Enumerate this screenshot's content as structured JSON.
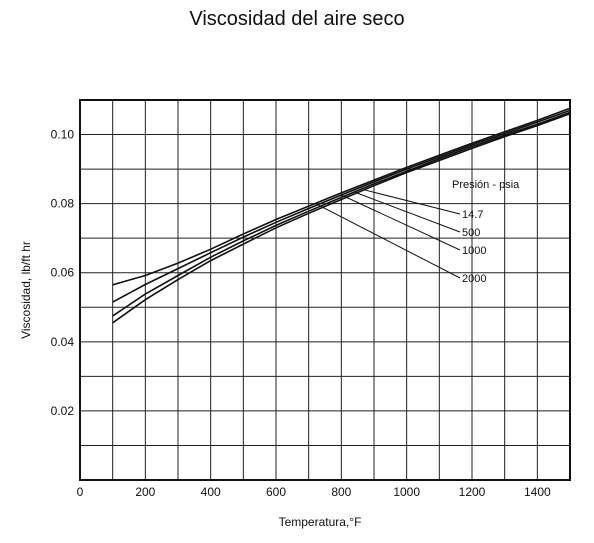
{
  "title": "Viscosidad del aire seco",
  "chart_data": {
    "type": "line",
    "title": "Viscosidad del aire seco",
    "xlabel": "Temperatura,°F",
    "ylabel": "Viscosidad, lb/ft hr",
    "xlim": [
      0,
      1500
    ],
    "ylim": [
      0.0,
      0.11
    ],
    "x_ticks": [
      0,
      200,
      400,
      600,
      800,
      1000,
      1200,
      1400
    ],
    "y_ticks": [
      0.02,
      0.04,
      0.06,
      0.08,
      0.1
    ],
    "grid": true,
    "legend_title": "Presión - psia",
    "series": [
      {
        "name": "14.7",
        "x": [
          100,
          200,
          300,
          400,
          500,
          600,
          700,
          800,
          900,
          1000,
          1100,
          1200,
          1300,
          1400,
          1500
        ],
        "y": [
          0.0455,
          0.0522,
          0.058,
          0.0635,
          0.0683,
          0.073,
          0.0772,
          0.0812,
          0.0852,
          0.089,
          0.0925,
          0.096,
          0.0994,
          0.1026,
          0.106
        ]
      },
      {
        "name": "500",
        "x": [
          100,
          200,
          300,
          400,
          500,
          600,
          700,
          800,
          900,
          1000,
          1100,
          1200,
          1300,
          1400,
          1500
        ],
        "y": [
          0.0475,
          0.0538,
          0.0592,
          0.0645,
          0.0692,
          0.0737,
          0.0778,
          0.0818,
          0.0857,
          0.0894,
          0.093,
          0.0965,
          0.0998,
          0.103,
          0.1064
        ]
      },
      {
        "name": "1000",
        "x": [
          100,
          200,
          300,
          400,
          500,
          600,
          700,
          800,
          900,
          1000,
          1100,
          1200,
          1300,
          1400,
          1500
        ],
        "y": [
          0.0515,
          0.0566,
          0.0612,
          0.0658,
          0.0703,
          0.0746,
          0.0786,
          0.0825,
          0.0863,
          0.09,
          0.0935,
          0.097,
          0.1003,
          0.1036,
          0.107
        ]
      },
      {
        "name": "2000",
        "x": [
          100,
          200,
          300,
          400,
          500,
          600,
          700,
          800,
          900,
          1000,
          1100,
          1200,
          1300,
          1400,
          1500
        ],
        "y": [
          0.0565,
          0.0592,
          0.0628,
          0.0668,
          0.0712,
          0.0754,
          0.0793,
          0.0831,
          0.0868,
          0.0905,
          0.094,
          0.0975,
          0.1008,
          0.1041,
          0.1076
        ]
      }
    ]
  }
}
